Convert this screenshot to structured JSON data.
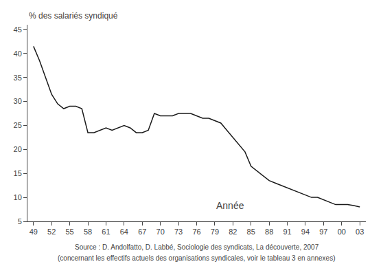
{
  "chart_data": {
    "type": "line",
    "ylabel": "% des salariés syndiqué",
    "x": [
      49,
      50,
      51,
      52,
      53,
      54,
      55,
      56,
      57,
      58,
      59,
      60,
      61,
      62,
      63,
      64,
      65,
      66,
      67,
      68,
      69,
      70,
      71,
      72,
      73,
      74,
      75,
      76,
      77,
      78,
      79,
      80,
      81,
      82,
      83,
      84,
      85,
      86,
      87,
      88,
      89,
      90,
      91,
      92,
      93,
      94,
      95,
      96,
      97,
      98,
      99,
      100,
      101,
      102,
      103
    ],
    "values": [
      41.5,
      38.5,
      35.0,
      31.5,
      29.5,
      28.5,
      29.0,
      29.0,
      28.5,
      23.5,
      23.5,
      24.0,
      24.5,
      24.0,
      24.5,
      25.0,
      24.5,
      23.5,
      23.5,
      24.0,
      27.5,
      27.0,
      27.0,
      27.0,
      27.5,
      27.5,
      27.5,
      27.0,
      26.5,
      26.5,
      26.0,
      25.5,
      24.0,
      22.5,
      21.0,
      19.5,
      16.5,
      15.5,
      14.5,
      13.5,
      13.0,
      12.5,
      12.0,
      11.5,
      11.0,
      10.5,
      10.0,
      10.0,
      9.5,
      9.0,
      8.5,
      8.5,
      8.5,
      8.3,
      8.0
    ],
    "color": "#1a1a1a",
    "xlim": [
      48,
      104
    ],
    "xticks": [
      49,
      52,
      55,
      58,
      61,
      64,
      67,
      70,
      73,
      76,
      79,
      82,
      85,
      88,
      91,
      94,
      97,
      {
        "value": 100,
        "label": "00"
      },
      {
        "value": 103,
        "label": "03"
      }
    ],
    "ylim": [
      5,
      46
    ],
    "yticks": [
      5,
      10,
      15,
      20,
      25,
      30,
      35,
      40,
      45
    ],
    "grid": false,
    "annotations": [
      {
        "text": "Année",
        "x": 79,
        "y": 6.8
      }
    ],
    "source": [
      "Source : D. Andolfatto, D. Labbé, Sociologie des syndicats, La découverte, 2007",
      "(concernant les effectifs actuels des organisations syndicales, voir le tableau 3 en annexes)"
    ]
  }
}
